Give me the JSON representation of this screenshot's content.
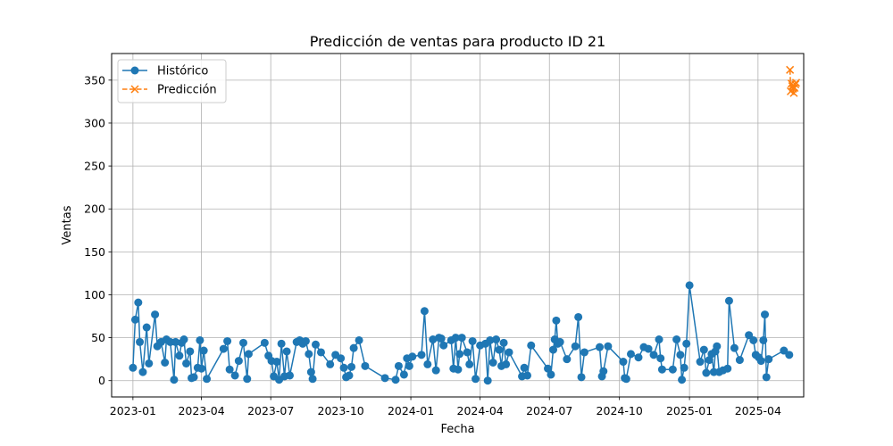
{
  "chart_data": {
    "type": "line",
    "title": "Predicción de ventas para producto ID 21",
    "xlabel": "Fecha",
    "ylabel": "Ventas",
    "x_ticks": [
      "2023-01",
      "2023-04",
      "2023-07",
      "2023-10",
      "2024-01",
      "2024-04",
      "2024-07",
      "2024-10",
      "2025-01",
      "2025-04"
    ],
    "y_ticks": [
      0,
      50,
      100,
      150,
      200,
      250,
      300,
      350
    ],
    "xlim": [
      "2022-12-04",
      "2025-05-31"
    ],
    "ylim": [
      -19,
      381
    ],
    "grid": true,
    "legend_position": "top-left",
    "series": [
      {
        "name": "Histórico",
        "color": "#1f77b4",
        "marker": "circle",
        "linestyle": "solid",
        "points": [
          [
            "2023-01-01",
            15
          ],
          [
            "2023-01-04",
            71
          ],
          [
            "2023-01-08",
            91
          ],
          [
            "2023-01-10",
            45
          ],
          [
            "2023-01-14",
            10
          ],
          [
            "2023-01-19",
            62
          ],
          [
            "2023-01-22",
            20
          ],
          [
            "2023-01-30",
            77
          ],
          [
            "2023-02-02",
            40
          ],
          [
            "2023-02-07",
            45
          ],
          [
            "2023-02-12",
            21
          ],
          [
            "2023-02-14",
            48
          ],
          [
            "2023-02-19",
            45
          ],
          [
            "2023-02-24",
            1
          ],
          [
            "2023-02-26",
            45
          ],
          [
            "2023-03-03",
            29
          ],
          [
            "2023-03-06",
            44
          ],
          [
            "2023-03-09",
            48
          ],
          [
            "2023-03-12",
            20
          ],
          [
            "2023-03-17",
            34
          ],
          [
            "2023-03-19",
            3
          ],
          [
            "2023-03-22",
            4
          ],
          [
            "2023-03-27",
            15
          ],
          [
            "2023-03-30",
            47
          ],
          [
            "2023-04-01",
            14
          ],
          [
            "2023-04-04",
            35
          ],
          [
            "2023-04-08",
            2
          ],
          [
            "2023-04-30",
            37
          ],
          [
            "2023-05-05",
            46
          ],
          [
            "2023-05-08",
            13
          ],
          [
            "2023-05-15",
            6
          ],
          [
            "2023-05-20",
            23
          ],
          [
            "2023-05-26",
            44
          ],
          [
            "2023-05-31",
            2
          ],
          [
            "2023-06-02",
            31
          ],
          [
            "2023-06-23",
            44
          ],
          [
            "2023-06-28",
            29
          ],
          [
            "2023-07-02",
            23
          ],
          [
            "2023-07-05",
            5
          ],
          [
            "2023-07-09",
            22
          ],
          [
            "2023-07-12",
            1
          ],
          [
            "2023-07-15",
            43
          ],
          [
            "2023-07-19",
            5
          ],
          [
            "2023-07-22",
            34
          ],
          [
            "2023-07-26",
            6
          ],
          [
            "2023-08-04",
            45
          ],
          [
            "2023-08-08",
            47
          ],
          [
            "2023-08-12",
            43
          ],
          [
            "2023-08-16",
            46
          ],
          [
            "2023-08-20",
            31
          ],
          [
            "2023-08-23",
            10
          ],
          [
            "2023-08-25",
            2
          ],
          [
            "2023-08-29",
            42
          ],
          [
            "2023-09-05",
            33
          ],
          [
            "2023-09-17",
            19
          ],
          [
            "2023-09-24",
            30
          ],
          [
            "2023-10-01",
            26
          ],
          [
            "2023-10-05",
            15
          ],
          [
            "2023-10-08",
            4
          ],
          [
            "2023-10-12",
            6
          ],
          [
            "2023-10-15",
            16
          ],
          [
            "2023-10-18",
            38
          ],
          [
            "2023-10-25",
            47
          ],
          [
            "2023-11-02",
            17
          ],
          [
            "2023-11-28",
            3
          ],
          [
            "2023-12-12",
            1
          ],
          [
            "2023-12-16",
            17
          ],
          [
            "2023-12-23",
            7
          ],
          [
            "2023-12-27",
            26
          ],
          [
            "2023-12-30",
            17
          ],
          [
            "2024-01-03",
            28
          ],
          [
            "2024-01-15",
            30
          ],
          [
            "2024-01-19",
            81
          ],
          [
            "2024-01-23",
            19
          ],
          [
            "2024-01-30",
            48
          ],
          [
            "2024-02-03",
            12
          ],
          [
            "2024-02-07",
            50
          ],
          [
            "2024-02-10",
            49
          ],
          [
            "2024-02-13",
            41
          ],
          [
            "2024-02-23",
            47
          ],
          [
            "2024-02-26",
            14
          ],
          [
            "2024-02-29",
            50
          ],
          [
            "2024-03-03",
            13
          ],
          [
            "2024-03-05",
            31
          ],
          [
            "2024-03-08",
            50
          ],
          [
            "2024-03-15",
            33
          ],
          [
            "2024-03-18",
            19
          ],
          [
            "2024-03-22",
            46
          ],
          [
            "2024-03-26",
            2
          ],
          [
            "2024-04-01",
            41
          ],
          [
            "2024-04-08",
            43
          ],
          [
            "2024-04-11",
            0
          ],
          [
            "2024-04-14",
            47
          ],
          [
            "2024-04-18",
            21
          ],
          [
            "2024-04-22",
            48
          ],
          [
            "2024-04-26",
            36
          ],
          [
            "2024-04-29",
            17
          ],
          [
            "2024-05-02",
            44
          ],
          [
            "2024-05-05",
            19
          ],
          [
            "2024-05-09",
            33
          ],
          [
            "2024-05-26",
            5
          ],
          [
            "2024-05-29",
            15
          ],
          [
            "2024-06-02",
            6
          ],
          [
            "2024-06-07",
            41
          ],
          [
            "2024-06-29",
            14
          ],
          [
            "2024-07-03",
            7
          ],
          [
            "2024-07-06",
            36
          ],
          [
            "2024-07-08",
            48
          ],
          [
            "2024-07-10",
            70
          ],
          [
            "2024-07-12",
            43
          ],
          [
            "2024-07-15",
            45
          ],
          [
            "2024-07-24",
            25
          ],
          [
            "2024-08-04",
            40
          ],
          [
            "2024-08-08",
            74
          ],
          [
            "2024-08-12",
            4
          ],
          [
            "2024-08-16",
            33
          ],
          [
            "2024-09-05",
            39
          ],
          [
            "2024-09-08",
            5
          ],
          [
            "2024-09-10",
            11
          ],
          [
            "2024-09-16",
            40
          ],
          [
            "2024-10-06",
            22
          ],
          [
            "2024-10-08",
            3
          ],
          [
            "2024-10-10",
            2
          ],
          [
            "2024-10-16",
            31
          ],
          [
            "2024-10-26",
            27
          ],
          [
            "2024-11-02",
            39
          ],
          [
            "2024-11-08",
            37
          ],
          [
            "2024-11-15",
            30
          ],
          [
            "2024-11-22",
            48
          ],
          [
            "2024-11-24",
            26
          ],
          [
            "2024-11-26",
            13
          ],
          [
            "2024-12-10",
            13
          ],
          [
            "2024-12-15",
            48
          ],
          [
            "2024-12-20",
            30
          ],
          [
            "2024-12-22",
            1
          ],
          [
            "2024-12-25",
            15
          ],
          [
            "2024-12-28",
            43
          ],
          [
            "2025-01-01",
            111
          ],
          [
            "2025-01-15",
            22
          ],
          [
            "2025-01-20",
            36
          ],
          [
            "2025-01-23",
            9
          ],
          [
            "2025-01-27",
            24
          ],
          [
            "2025-01-30",
            31
          ],
          [
            "2025-02-02",
            10
          ],
          [
            "2025-02-04",
            34
          ],
          [
            "2025-02-06",
            40
          ],
          [
            "2025-02-09",
            10
          ],
          [
            "2025-02-14",
            12
          ],
          [
            "2025-02-20",
            14
          ],
          [
            "2025-02-22",
            93
          ],
          [
            "2025-02-29",
            38
          ],
          [
            "2025-03-08",
            24
          ],
          [
            "2025-03-20",
            53
          ],
          [
            "2025-03-26",
            47
          ],
          [
            "2025-03-29",
            30
          ],
          [
            "2025-04-02",
            27
          ],
          [
            "2025-04-05",
            23
          ],
          [
            "2025-04-08",
            47
          ],
          [
            "2025-04-10",
            77
          ],
          [
            "2025-04-12",
            4
          ],
          [
            "2025-04-15",
            25
          ],
          [
            "2025-05-05",
            35
          ],
          [
            "2025-05-12",
            30
          ]
        ]
      },
      {
        "name": "Predicción",
        "color": "#ff7f0e",
        "marker": "x",
        "linestyle": "dashed",
        "points": [
          [
            "2025-05-13",
            362
          ],
          [
            "2025-05-14",
            337
          ],
          [
            "2025-05-15",
            346
          ],
          [
            "2025-05-16",
            343
          ],
          [
            "2025-05-17",
            340
          ],
          [
            "2025-05-18",
            335
          ],
          [
            "2025-05-19",
            341
          ],
          [
            "2025-05-20",
            345
          ],
          [
            "2025-05-21",
            347
          ]
        ]
      }
    ]
  }
}
